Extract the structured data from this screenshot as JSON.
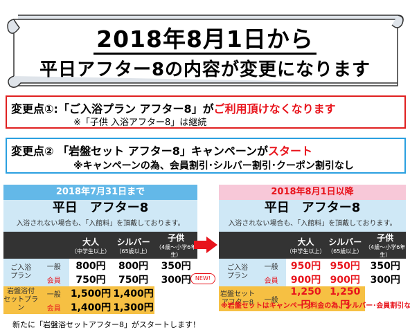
{
  "banner": {
    "line1": "2018年8月1日から",
    "line2": "平日アフター8の内容が変更になります"
  },
  "change1": {
    "label": "変更点①:",
    "text": "「ご入浴プラン アフター8」が",
    "emphasis": "ご利用頂けなくなります",
    "sub": "※「子供 入浴アフター8」は継続"
  },
  "change2": {
    "label": "変更点②",
    "text": "「岩盤セット アフター8」キャンペーンが",
    "emphasis": "スタート",
    "sub": "※キャンペーンの為、会員割引･シルバー割引･クーポン割引なし"
  },
  "columns": {
    "adult": "大人",
    "adult_sub": "（中学生以上）",
    "silver": "シルバー",
    "silver_sub": "（65歳以上）",
    "child": "子供",
    "child_sub": "（4歳～小学6年生）"
  },
  "left_table": {
    "header": "2018年7月31日まで",
    "title": "平日　アフター8",
    "note": "入浴されない場合も、「入館料」を頂戴しております。",
    "rows": {
      "bath_plan": "ご入浴\nプラン",
      "bath_general_label": "一般",
      "bath_general": [
        "800円",
        "800円",
        "350円"
      ],
      "bath_member_label": "会員",
      "bath_member": [
        "750円",
        "750円",
        "300円"
      ],
      "rock_plan": "岩盤浴付\nセットプラン",
      "rock_general_label": "一般",
      "rock_general": [
        "1,500円",
        "1,400円"
      ],
      "rock_member_label": "会員",
      "rock_member": [
        "1,400円",
        "1,300円"
      ]
    }
  },
  "right_table": {
    "header": "2018年8月1日以降",
    "title": "平日　アフター8",
    "note": "入浴されない場合も、「入館料」を頂戴しております。",
    "rows": {
      "bath_plan": "ご入浴\nプラン",
      "bath_general_label": "一般",
      "bath_general": [
        "950円",
        "950円",
        "350円"
      ],
      "bath_member_label": "会員",
      "bath_member": [
        "900円",
        "900円",
        "300円"
      ],
      "rock_plan": "岩盤セット\nアフター8",
      "rock_general_label": "一般",
      "rock_general": [
        "1,250円",
        "1,250円"
      ]
    },
    "rock_note": "※岩盤セットはキャンペーン料金の為、シルバー･会員割引なし"
  },
  "badge": "NEW!",
  "footer": "新たに「岩盤浴セットアフター8」がスタートします！",
  "colors": {
    "accent_red": "#e8141c",
    "header_blue": "#63b8e8",
    "panel_blue": "#cfe8f6",
    "rock_orange": "#f6c043",
    "box_blue": "#2aa0e0"
  }
}
